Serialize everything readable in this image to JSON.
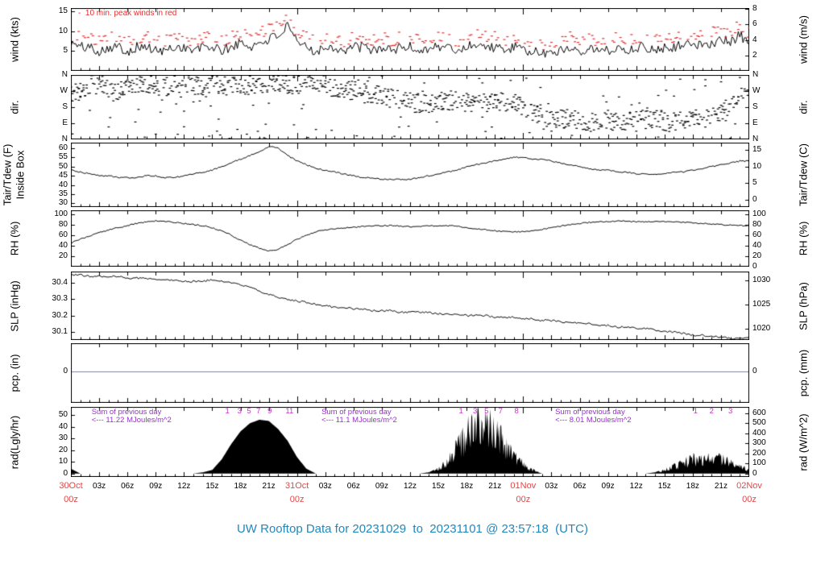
{
  "notes": {
    "peak_winds": "-  10 min. peak winds in red"
  },
  "footer": {
    "title": "UW Rooftop Data for 20231029  to  20231101 @ 23:57:18  (UTC)"
  },
  "colors": {
    "axis_black": "#000000",
    "peak_red": "#e03030",
    "day_label_red": "#e04848",
    "annotation_purple": "#9932cc",
    "marker_magenta": "#cc33cc",
    "title_blue": "#2288bb",
    "precip_blue": "#7080cc"
  },
  "x_axis": {
    "hours_span": 72,
    "tick_step_hours": 3,
    "tick_labels": [
      "03z",
      "06z",
      "09z",
      "12z",
      "15z",
      "18z",
      "21z"
    ],
    "day_labels": [
      {
        "h": 0,
        "date": "30Oct",
        "time": "00z"
      },
      {
        "h": 24,
        "date": "31Oct",
        "time": "00z"
      },
      {
        "h": 48,
        "date": "01Nov",
        "time": "00z"
      },
      {
        "h": 72,
        "date": "02Nov",
        "time": "00z"
      }
    ]
  },
  "chart_data": [
    {
      "id": "wind",
      "type": "line",
      "ylabel_left": "wind (kts)",
      "ylabel_right": "wind (m/s)",
      "ylim": [
        0,
        15.8
      ],
      "ticks_left": [
        {
          "v": 15,
          "label": "15"
        },
        {
          "v": 10,
          "label": "10"
        },
        {
          "v": 5,
          "label": "5"
        }
      ],
      "ticks_right": [
        {
          "v": 15.551,
          "label": "8"
        },
        {
          "v": 11.663,
          "label": "6"
        },
        {
          "v": 7.776,
          "label": "4"
        },
        {
          "v": 3.888,
          "label": "2"
        }
      ],
      "values_interval_hours": 1,
      "series": [
        {
          "name": "wind_speed_kts",
          "style": "line",
          "color": "#000000",
          "noise": 1.3,
          "seed": 101,
          "min": 0.3,
          "values": [
            7,
            6,
            6,
            5,
            6,
            6,
            5,
            6,
            6,
            5,
            5,
            6,
            6,
            5,
            6,
            6,
            5,
            6,
            7,
            6,
            7,
            8,
            9,
            11,
            7,
            6,
            5,
            6,
            6,
            5,
            6,
            6,
            5,
            6,
            5,
            6,
            6,
            5,
            6,
            6,
            6,
            5,
            6,
            7,
            6,
            6,
            5,
            6,
            5,
            5,
            4,
            5,
            5,
            6,
            5,
            6,
            5,
            5,
            6,
            5,
            6,
            6,
            5,
            6,
            6,
            7,
            6,
            7,
            7,
            8,
            7,
            9,
            7
          ]
        },
        {
          "name": "wind_peak_10min_kts",
          "style": "peak-dashes",
          "color": "#e03030",
          "offset": 2.5,
          "noise": 1.5,
          "seed": 102
        }
      ]
    },
    {
      "id": "dir",
      "type": "scatter",
      "ylabel_left": "dir.",
      "ylabel_right": "dir.",
      "ylim": [
        0,
        360
      ],
      "ticks_left": [
        {
          "v": 360,
          "label": "N"
        },
        {
          "v": 270,
          "label": "W"
        },
        {
          "v": 180,
          "label": "S"
        },
        {
          "v": 90,
          "label": "E"
        },
        {
          "v": 0,
          "label": "N"
        }
      ],
      "ticks_right": [
        {
          "v": 360,
          "label": "N"
        },
        {
          "v": 270,
          "label": "W"
        },
        {
          "v": 180,
          "label": "S"
        },
        {
          "v": 90,
          "label": "E"
        },
        {
          "v": 0,
          "label": "N"
        }
      ],
      "values_interval_hours": 1,
      "series": [
        {
          "name": "wind_direction_deg",
          "style": "dir-scatter",
          "color": "#000000",
          "spread": 55,
          "seed": 103,
          "values": [
            250,
            270,
            300,
            320,
            280,
            260,
            300,
            310,
            320,
            300,
            290,
            300,
            310,
            300,
            290,
            300,
            310,
            320,
            310,
            300,
            310,
            320,
            310,
            300,
            310,
            320,
            310,
            300,
            290,
            280,
            270,
            260,
            250,
            240,
            230,
            220,
            210,
            200,
            200,
            210,
            220,
            210,
            205,
            200,
            200,
            205,
            210,
            200,
            180,
            150,
            120,
            100,
            110,
            120,
            100,
            90,
            100,
            110,
            100,
            95,
            100,
            110,
            120,
            100,
            95,
            100,
            110,
            120,
            130,
            150,
            200,
            260,
            300
          ]
        }
      ]
    },
    {
      "id": "temp",
      "type": "line",
      "ylabel_left": "Tair/Tdew (F)",
      "ylabel_left2": "Inside Box",
      "ylabel_right": "Tair/Tdew (C)",
      "ylim": [
        28,
        63
      ],
      "ticks_left": [
        {
          "v": 60,
          "label": "60"
        },
        {
          "v": 55,
          "label": "55"
        },
        {
          "v": 50,
          "label": "50"
        },
        {
          "v": 45,
          "label": "45"
        },
        {
          "v": 40,
          "label": "40"
        },
        {
          "v": 35,
          "label": "35"
        },
        {
          "v": 30,
          "label": "30"
        }
      ],
      "ticks_right": [
        {
          "v": 59,
          "label": "15"
        },
        {
          "v": 50,
          "label": "10"
        },
        {
          "v": 41,
          "label": "5"
        },
        {
          "v": 32,
          "label": "0"
        }
      ],
      "values_interval_hours": 1,
      "series": [
        {
          "name": "tair_f",
          "style": "line",
          "color": "#000000",
          "noise": 0.35,
          "seed": 104,
          "values": [
            48,
            47,
            46,
            45,
            45,
            44,
            44,
            44,
            45,
            45,
            44,
            44,
            45,
            46,
            47,
            48,
            50,
            52,
            54,
            56,
            58,
            61,
            60,
            56,
            53,
            51,
            49,
            48,
            47,
            46,
            45,
            44,
            44,
            43,
            43,
            43,
            43,
            44,
            45,
            46,
            47,
            48,
            50,
            51,
            52,
            53,
            54,
            55,
            55,
            54,
            54,
            53,
            52,
            51,
            50,
            49,
            48,
            48,
            47,
            47,
            46,
            46,
            46,
            46,
            47,
            47,
            48,
            49,
            50,
            51,
            52,
            53,
            53
          ]
        }
      ]
    },
    {
      "id": "rh",
      "type": "line",
      "ylabel_left": "RH (%)",
      "ylabel_right": "RH (%)",
      "ylim": [
        0,
        107
      ],
      "ticks_left": [
        {
          "v": 100,
          "label": "100"
        },
        {
          "v": 80,
          "label": "80"
        },
        {
          "v": 60,
          "label": "60"
        },
        {
          "v": 40,
          "label": "40"
        },
        {
          "v": 20,
          "label": "20"
        }
      ],
      "ticks_right": [
        {
          "v": 100,
          "label": "100"
        },
        {
          "v": 80,
          "label": "80"
        },
        {
          "v": 60,
          "label": "60"
        },
        {
          "v": 40,
          "label": "40"
        },
        {
          "v": 20,
          "label": "20"
        },
        {
          "v": 0,
          "label": "0"
        }
      ],
      "values_interval_hours": 1,
      "series": [
        {
          "name": "rh_pct",
          "style": "line",
          "color": "#000000",
          "noise": 1.2,
          "seed": 105,
          "values": [
            45,
            52,
            58,
            64,
            70,
            74,
            78,
            82,
            85,
            87,
            86,
            84,
            82,
            80,
            78,
            74,
            68,
            60,
            50,
            42,
            35,
            30,
            33,
            42,
            52,
            60,
            66,
            70,
            72,
            74,
            75,
            76,
            77,
            78,
            78,
            77,
            76,
            76,
            77,
            78,
            78,
            77,
            74,
            72,
            70,
            68,
            67,
            66,
            66,
            68,
            71,
            74,
            77,
            80,
            82,
            84,
            85,
            86,
            87,
            86,
            85,
            85,
            86,
            86,
            85,
            84,
            83,
            82,
            81,
            80,
            79,
            78,
            78
          ]
        }
      ]
    },
    {
      "id": "slp",
      "type": "line",
      "ylabel_left": "SLP (inHg)",
      "ylabel_right": "SLP (hPa)",
      "ylim": [
        30.05,
        30.47
      ],
      "ticks_left": [
        {
          "v": 30.4,
          "label": "30.4"
        },
        {
          "v": 30.3,
          "label": "30.3"
        },
        {
          "v": 30.2,
          "label": "30.2"
        },
        {
          "v": 30.1,
          "label": "30.1"
        }
      ],
      "ticks_right": [
        {
          "v": 30.414,
          "label": "1030"
        },
        {
          "v": 30.266,
          "label": "1025"
        },
        {
          "v": 30.119,
          "label": "1020"
        }
      ],
      "values_interval_hours": 1,
      "series": [
        {
          "name": "slp_inhg",
          "style": "line",
          "color": "#000000",
          "noise": 0.006,
          "seed": 106,
          "values": [
            30.45,
            30.45,
            30.44,
            30.44,
            30.44,
            30.44,
            30.43,
            30.43,
            30.43,
            30.42,
            30.42,
            30.42,
            30.41,
            30.41,
            30.41,
            30.42,
            30.41,
            30.4,
            30.39,
            30.37,
            30.35,
            30.33,
            30.31,
            30.3,
            30.29,
            30.28,
            30.27,
            30.26,
            30.25,
            30.25,
            30.24,
            30.24,
            30.23,
            30.23,
            30.23,
            30.22,
            30.22,
            30.22,
            30.22,
            30.21,
            30.21,
            30.21,
            30.2,
            30.2,
            30.2,
            30.19,
            30.19,
            30.19,
            30.18,
            30.18,
            30.17,
            30.17,
            30.16,
            30.16,
            30.15,
            30.15,
            30.14,
            30.14,
            30.13,
            30.13,
            30.12,
            30.12,
            30.11,
            30.1,
            30.1,
            30.09,
            30.08,
            30.08,
            30.07,
            30.07,
            30.06,
            30.06,
            30.06
          ]
        }
      ]
    },
    {
      "id": "pcp",
      "type": "line",
      "ylabel_left": "pcp. (in)",
      "ylabel_right": "pcp. (mm)",
      "ylim": [
        -0.55,
        0.5
      ],
      "ticks_left": [
        {
          "v": 0,
          "label": "0"
        }
      ],
      "ticks_right": [
        {
          "v": 0,
          "label": "0"
        }
      ],
      "series": [
        {
          "name": "precip_in",
          "style": "zero-line",
          "color": "#7080cc",
          "value": 0
        }
      ]
    },
    {
      "id": "rad",
      "type": "area",
      "ylabel_left": "rad(Lgly/hr)",
      "ylabel_right": "rad (W/m^2)",
      "ylim": [
        -3,
        57
      ],
      "ticks_left": [
        {
          "v": 50,
          "label": "50"
        },
        {
          "v": 40,
          "label": "40"
        },
        {
          "v": 30,
          "label": "30"
        },
        {
          "v": 20,
          "label": "20"
        },
        {
          "v": 10,
          "label": "10"
        },
        {
          "v": 0,
          "label": "0"
        }
      ],
      "ticks_right": [
        {
          "v": 51.59,
          "label": "600"
        },
        {
          "v": 42.99,
          "label": "500"
        },
        {
          "v": 34.39,
          "label": "400"
        },
        {
          "v": 25.8,
          "label": "300"
        },
        {
          "v": 17.2,
          "label": "200"
        },
        {
          "v": 8.6,
          "label": "100"
        },
        {
          "v": 0,
          "label": "0"
        }
      ],
      "values_interval_hours": 1,
      "series": [
        {
          "name": "solar_rad_lgly_hr",
          "style": "area",
          "color": "#000000",
          "seed": 107,
          "spiky_ranges": [
            [
              38.5,
              50.5
            ],
            [
              62.5,
              72
            ]
          ],
          "values": [
            4,
            0,
            0,
            0,
            0,
            0,
            0,
            0,
            0,
            0,
            0,
            0,
            0,
            0,
            1,
            3,
            12,
            25,
            36,
            43,
            46,
            45,
            38,
            28,
            14,
            4,
            0,
            0,
            0,
            0,
            0,
            0,
            0,
            0,
            0,
            0,
            0,
            0,
            1,
            5,
            15,
            30,
            45,
            52,
            54,
            48,
            35,
            20,
            10,
            4,
            0,
            0,
            0,
            0,
            0,
            0,
            0,
            0,
            0,
            0,
            0,
            0,
            1,
            4,
            8,
            12,
            16,
            18,
            20,
            16,
            13,
            9,
            4
          ]
        }
      ],
      "sum_annotations": [
        {
          "h": 2.2,
          "line1": "Sum of previous day",
          "line2": "<--- 11.22 MJoules/m^2"
        },
        {
          "h": 26.6,
          "line1": "Sum of previous day",
          "line2": "<--- 11.1 MJoules/m^2"
        },
        {
          "h": 51.4,
          "line1": "Sum of previous day",
          "line2": "<--- 8.01 MJoules/m^2"
        }
      ],
      "mj_markers": [
        {
          "h": 16.6,
          "label": "1"
        },
        {
          "h": 17.9,
          "label": "3"
        },
        {
          "h": 18.9,
          "label": "5"
        },
        {
          "h": 19.9,
          "label": "7"
        },
        {
          "h": 21.1,
          "label": "9"
        },
        {
          "h": 23.2,
          "label": "11"
        },
        {
          "h": 41.4,
          "label": "1"
        },
        {
          "h": 42.9,
          "label": "3"
        },
        {
          "h": 44.1,
          "label": "5"
        },
        {
          "h": 45.6,
          "label": "7"
        },
        {
          "h": 47.3,
          "label": "8"
        },
        {
          "h": 66.3,
          "label": "1"
        },
        {
          "h": 68.0,
          "label": "2"
        },
        {
          "h": 70.0,
          "label": "3"
        }
      ]
    }
  ]
}
